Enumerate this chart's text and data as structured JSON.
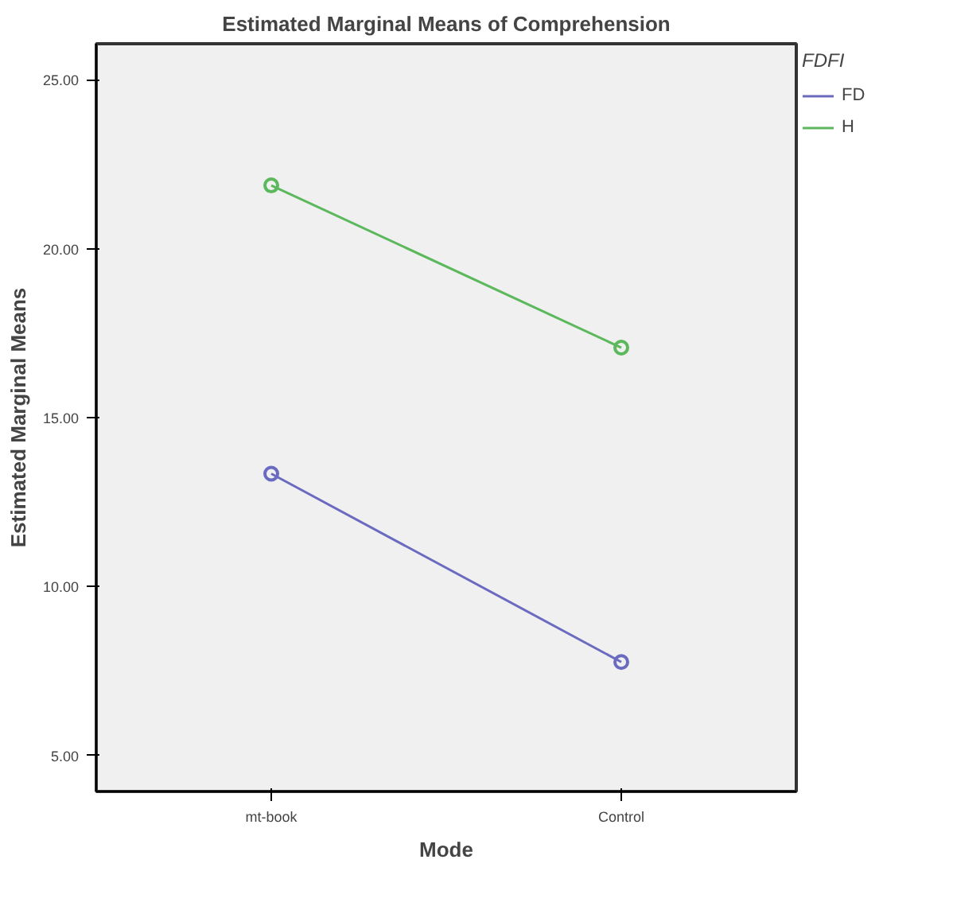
{
  "chart_data": {
    "type": "line",
    "title": "Estimated Marginal Means of Comprehension",
    "xlabel": "Mode",
    "ylabel": "Estimated Marginal Means",
    "legend_title": "FDFI",
    "categories": [
      "mt-book",
      "Control"
    ],
    "series": [
      {
        "name": "FD",
        "color": "#6a6ac0",
        "values": [
          13.34,
          7.77
        ]
      },
      {
        "name": "H",
        "color": "#5cb85c",
        "values": [
          21.87,
          17.07
        ]
      }
    ],
    "ylim": [
      3.94,
      26.06
    ],
    "yticks": [
      {
        "value": 5,
        "label": "5.00"
      },
      {
        "value": 10,
        "label": "10.00"
      },
      {
        "value": 15,
        "label": "15.00"
      },
      {
        "value": 20,
        "label": "20.00"
      },
      {
        "value": 25,
        "label": "25.00"
      }
    ],
    "grid": false,
    "legend": "top right",
    "marker": "circle",
    "line_style": "solid"
  }
}
